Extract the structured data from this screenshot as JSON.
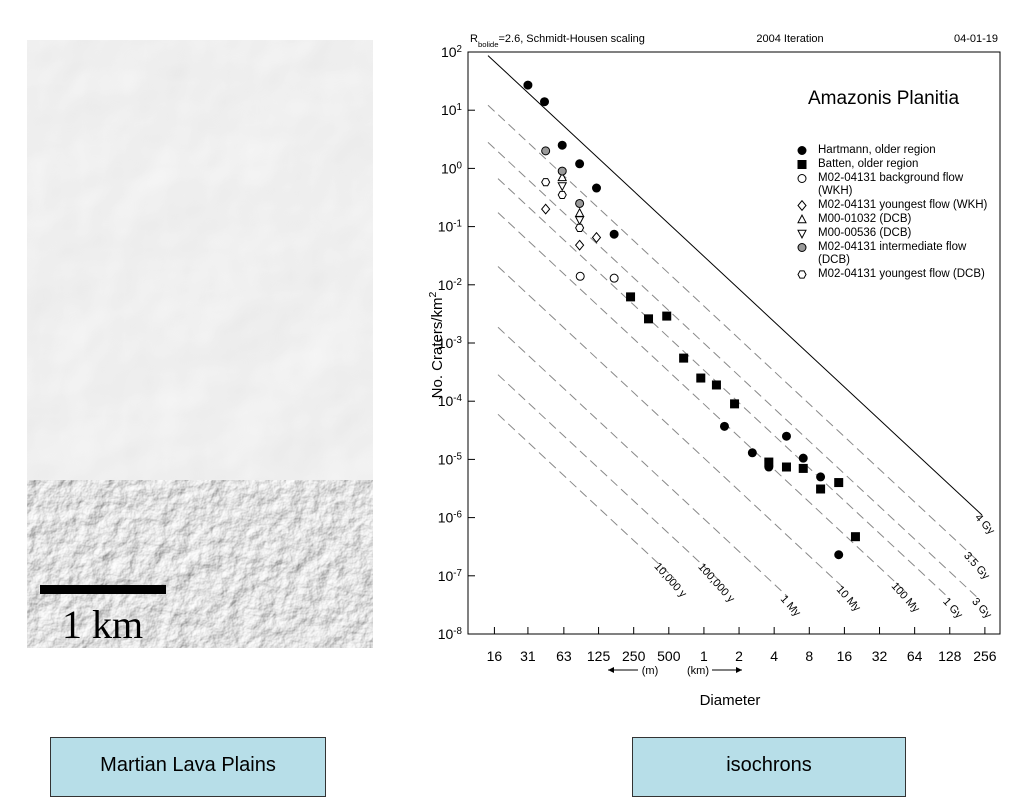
{
  "image": {
    "scale_label": "1 km"
  },
  "captions": [
    "Martian Lava Plains",
    "isochrons"
  ],
  "chart_data": {
    "type": "scatter",
    "header": [
      "R_bolide=2.6, Schmidt-Housen scaling",
      "2004 Iteration",
      "04-01-19"
    ],
    "title": "Amazonis Planitia",
    "x_label": "Diameter",
    "y_label": "No. Craters/km^2",
    "unit_labels": [
      "(m)",
      "(km)"
    ],
    "log_x": true,
    "log_y": true,
    "xlim": [
      0.0095,
      345
    ],
    "ylim": [
      1e-08,
      100
    ],
    "xticks": [
      {
        "value": 0.016,
        "label": "16"
      },
      {
        "value": 0.031,
        "label": "31"
      },
      {
        "value": 0.063,
        "label": "63"
      },
      {
        "value": 0.125,
        "label": "125"
      },
      {
        "value": 0.25,
        "label": "250"
      },
      {
        "value": 0.5,
        "label": "500"
      },
      1,
      2,
      4,
      8,
      16,
      32,
      64,
      128,
      256
    ],
    "yticks": [
      {
        "value": 100,
        "label": "10^2"
      },
      {
        "value": 10,
        "label": "10^1"
      },
      {
        "value": 1,
        "label": "10^0"
      },
      {
        "value": 0.1,
        "label": "10^-1"
      },
      {
        "value": 0.01,
        "label": "10^-2"
      },
      {
        "value": 0.001,
        "label": "10^-3"
      },
      {
        "value": 0.0001,
        "label": "10^-4"
      },
      {
        "value": 1e-05,
        "label": "10^-5"
      },
      {
        "value": 1e-06,
        "label": "10^-6"
      },
      {
        "value": 1e-07,
        "label": "10^-7"
      },
      {
        "value": 1e-08,
        "label": "10^-8"
      }
    ],
    "series": [
      {
        "name": "Hartmann, older region",
        "marker": "circle",
        "color": "#000000",
        "x": [
          0.031,
          0.043,
          0.061,
          0.086,
          0.12,
          0.17,
          1.5,
          2.6,
          3.6,
          5.1,
          7.1,
          10,
          14.3
        ],
        "values": [
          27,
          14,
          2.5,
          1.2,
          0.46,
          0.074,
          3.7e-05,
          1.3e-05,
          7.4e-06,
          2.5e-05,
          1.05e-05,
          5e-06,
          2.3e-07
        ]
      },
      {
        "name": "Batten, older region",
        "marker": "square",
        "color": "#000000",
        "x": [
          0.235,
          0.335,
          0.48,
          0.67,
          0.94,
          1.28,
          1.83,
          3.6,
          5.1,
          7.1,
          10,
          14.3,
          19.9
        ],
        "values": [
          0.0062,
          0.0026,
          0.0029,
          0.00055,
          0.00025,
          0.00019,
          9e-05,
          9e-06,
          7.4e-06,
          7e-06,
          3.1e-06,
          4e-06,
          4.7e-07
        ]
      },
      {
        "name": "M02-04131 background flow (WKH)",
        "marker": "open-circle",
        "color": "#000000",
        "x": [
          0.087,
          0.17
        ],
        "values": [
          0.014,
          0.013
        ]
      },
      {
        "name": "M02-04131 youngest flow (WKH)",
        "marker": "diamond",
        "color": "#000000",
        "x": [
          0.044,
          0.086,
          0.12
        ],
        "values": [
          0.2,
          0.048,
          0.065
        ]
      },
      {
        "name": "M00-01032 (DCB)",
        "marker": "triangle-up",
        "color": "#000000",
        "x": [
          0.061,
          0.086
        ],
        "values": [
          0.7,
          0.17
        ]
      },
      {
        "name": "M00-00536 (DCB)",
        "marker": "triangle-down",
        "color": "#000000",
        "x": [
          0.061,
          0.086
        ],
        "values": [
          0.5,
          0.13
        ]
      },
      {
        "name": "M02-04131 intermediate flow (DCB)",
        "marker": "gray-circle",
        "color": "#999999",
        "x": [
          0.044,
          0.061,
          0.086
        ],
        "values": [
          2.0,
          0.9,
          0.25
        ]
      },
      {
        "name": "M02-04131 youngest flow (DCB)",
        "marker": "hexagon",
        "color": "#000000",
        "x": [
          0.044,
          0.061,
          0.086
        ],
        "values": [
          0.58,
          0.35,
          0.095
        ]
      }
    ],
    "isochron_labels": [
      "10,000 y",
      "100,000 y",
      "1 My",
      "10 My",
      "100 My",
      "1 Gy",
      "3 Gy",
      "3.5 Gy",
      "4 Gy"
    ]
  }
}
